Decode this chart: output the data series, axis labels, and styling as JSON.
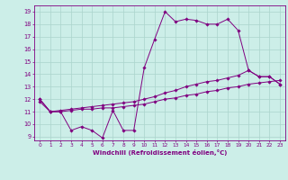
{
  "xlabel": "Windchill (Refroidissement éolien,°C)",
  "bg_color": "#cceee8",
  "line_color": "#800080",
  "grid_color": "#aad4cc",
  "text_color": "#800080",
  "xlim": [
    -0.5,
    23.5
  ],
  "ylim": [
    8.7,
    19.5
  ],
  "yticks": [
    9,
    10,
    11,
    12,
    13,
    14,
    15,
    16,
    17,
    18,
    19
  ],
  "xticks": [
    0,
    1,
    2,
    3,
    4,
    5,
    6,
    7,
    8,
    9,
    10,
    11,
    12,
    13,
    14,
    15,
    16,
    17,
    18,
    19,
    20,
    21,
    22,
    23
  ],
  "series": [
    {
      "x": [
        0,
        1,
        2,
        3,
        4,
        5,
        6,
        7,
        8,
        9,
        10,
        11,
        12,
        13,
        14,
        15,
        16,
        17,
        18,
        19,
        20,
        21,
        22,
        23
      ],
      "y": [
        12.0,
        11.0,
        11.0,
        9.5,
        9.8,
        9.5,
        8.9,
        11.1,
        9.5,
        9.5,
        14.5,
        16.8,
        19.0,
        18.2,
        18.4,
        18.3,
        18.0,
        18.0,
        18.4,
        17.5,
        14.3,
        13.8,
        13.8,
        13.2
      ]
    },
    {
      "x": [
        0,
        1,
        2,
        3,
        4,
        5,
        6,
        7,
        8,
        9,
        10,
        11,
        12,
        13,
        14,
        15,
        16,
        17,
        18,
        19,
        20,
        21,
        22,
        23
      ],
      "y": [
        12.0,
        11.0,
        11.1,
        11.2,
        11.3,
        11.4,
        11.5,
        11.6,
        11.7,
        11.8,
        12.0,
        12.2,
        12.5,
        12.7,
        13.0,
        13.2,
        13.4,
        13.5,
        13.7,
        13.9,
        14.3,
        13.8,
        13.8,
        13.2
      ]
    },
    {
      "x": [
        0,
        1,
        2,
        3,
        4,
        5,
        6,
        7,
        8,
        9,
        10,
        11,
        12,
        13,
        14,
        15,
        16,
        17,
        18,
        19,
        20,
        21,
        22,
        23
      ],
      "y": [
        11.8,
        11.0,
        11.0,
        11.1,
        11.2,
        11.2,
        11.3,
        11.3,
        11.4,
        11.5,
        11.6,
        11.8,
        12.0,
        12.1,
        12.3,
        12.4,
        12.6,
        12.7,
        12.9,
        13.0,
        13.2,
        13.3,
        13.4,
        13.5
      ]
    }
  ]
}
